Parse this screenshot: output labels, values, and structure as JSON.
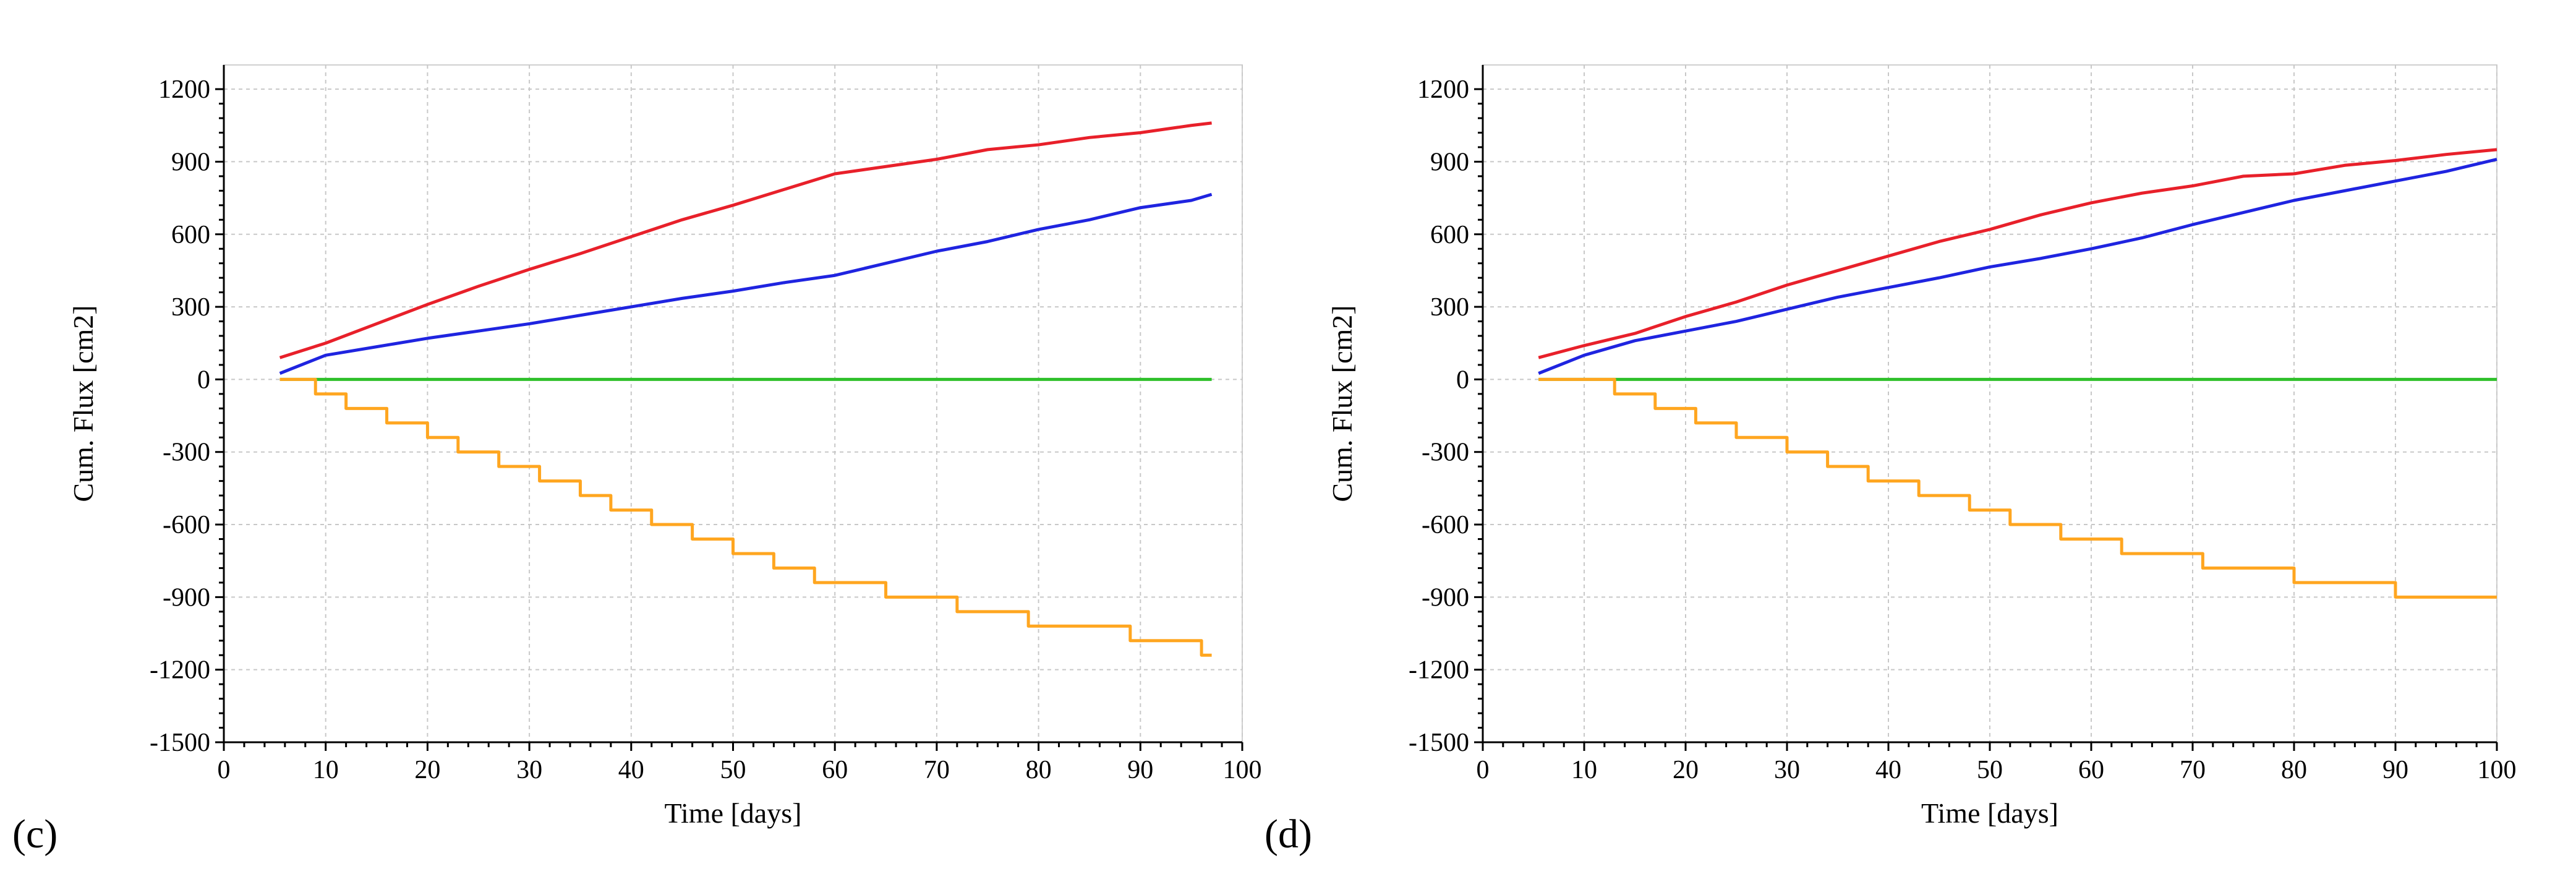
{
  "chart_data": [
    {
      "type": "line",
      "panel_label": "(c)",
      "xlabel": "Time [days]",
      "ylabel": "Cum. Flux [cm2]",
      "xlim": [
        0,
        100
      ],
      "ylim": [
        -1500,
        1300
      ],
      "xticks": [
        0,
        10,
        20,
        30,
        40,
        50,
        60,
        70,
        80,
        90,
        100
      ],
      "yticks": [
        -1500,
        -1200,
        -900,
        -600,
        -300,
        0,
        300,
        600,
        900,
        1200
      ],
      "grid": true,
      "series": [
        {
          "name": "red",
          "color": "#e8202a",
          "step": false,
          "x": [
            5.5,
            10,
            15,
            20,
            25,
            30,
            35,
            40,
            45,
            50,
            55,
            60,
            65,
            70,
            75,
            80,
            85,
            90,
            95,
            97
          ],
          "y": [
            90,
            150,
            230,
            310,
            385,
            455,
            520,
            590,
            660,
            720,
            785,
            850,
            880,
            910,
            950,
            970,
            1000,
            1020,
            1050,
            1060
          ]
        },
        {
          "name": "blue",
          "color": "#1f24e0",
          "step": false,
          "x": [
            5.5,
            10,
            15,
            20,
            25,
            30,
            35,
            40,
            45,
            50,
            55,
            60,
            65,
            70,
            75,
            80,
            85,
            90,
            95,
            97
          ],
          "y": [
            25,
            100,
            135,
            170,
            200,
            230,
            265,
            300,
            335,
            365,
            400,
            430,
            480,
            530,
            570,
            620,
            660,
            710,
            740,
            765
          ]
        },
        {
          "name": "green",
          "color": "#2ec02a",
          "step": false,
          "x": [
            5.5,
            97
          ],
          "y": [
            0,
            0
          ]
        },
        {
          "name": "orange",
          "color": "#ffa620",
          "step": true,
          "x": [
            5.5,
            9,
            12,
            16,
            20,
            23,
            27,
            31,
            35,
            38,
            42,
            46,
            50,
            54,
            58,
            65,
            72,
            79,
            89,
            96,
            97
          ],
          "y": [
            0,
            -60,
            -120,
            -180,
            -240,
            -300,
            -360,
            -420,
            -480,
            -540,
            -600,
            -660,
            -720,
            -780,
            -840,
            -900,
            -960,
            -1020,
            -1080,
            -1140,
            -1140
          ]
        }
      ]
    },
    {
      "type": "line",
      "panel_label": "(d)",
      "xlabel": "Time [days]",
      "ylabel": "Cum. Flux [cm2]",
      "xlim": [
        0,
        100
      ],
      "ylim": [
        -1500,
        1300
      ],
      "xticks": [
        0,
        10,
        20,
        30,
        40,
        50,
        60,
        70,
        80,
        90,
        100
      ],
      "yticks": [
        -1500,
        -1200,
        -900,
        -600,
        -300,
        0,
        300,
        600,
        900,
        1200
      ],
      "grid": true,
      "series": [
        {
          "name": "red",
          "color": "#e8202a",
          "step": false,
          "x": [
            5.5,
            10,
            15,
            20,
            25,
            30,
            35,
            40,
            45,
            50,
            55,
            60,
            65,
            70,
            75,
            80,
            85,
            90,
            95,
            100
          ],
          "y": [
            90,
            140,
            190,
            260,
            320,
            390,
            450,
            510,
            570,
            620,
            680,
            730,
            770,
            800,
            840,
            850,
            885,
            905,
            930,
            950
          ]
        },
        {
          "name": "blue",
          "color": "#1f24e0",
          "step": false,
          "x": [
            5.5,
            10,
            15,
            20,
            25,
            30,
            35,
            40,
            45,
            50,
            55,
            60,
            65,
            70,
            75,
            80,
            85,
            90,
            95,
            100
          ],
          "y": [
            25,
            100,
            160,
            200,
            240,
            290,
            340,
            380,
            420,
            465,
            500,
            540,
            585,
            640,
            690,
            740,
            780,
            820,
            860,
            910
          ]
        },
        {
          "name": "green",
          "color": "#2ec02a",
          "step": false,
          "x": [
            5.5,
            100
          ],
          "y": [
            0,
            0
          ]
        },
        {
          "name": "orange",
          "color": "#ffa620",
          "step": true,
          "x": [
            5.5,
            13,
            17,
            21,
            25,
            30,
            34,
            38,
            43,
            48,
            52,
            57,
            63,
            71,
            80,
            90,
            100
          ],
          "y": [
            0,
            -60,
            -120,
            -180,
            -240,
            -300,
            -360,
            -420,
            -480,
            -540,
            -600,
            -660,
            -720,
            -780,
            -840,
            -900,
            -900
          ]
        }
      ]
    }
  ]
}
